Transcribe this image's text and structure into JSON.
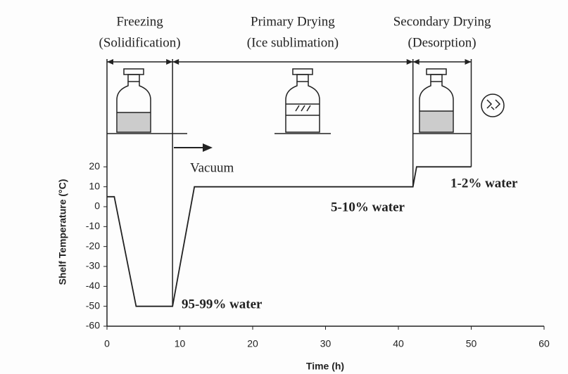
{
  "chart_data": {
    "type": "line",
    "xlabel": "Time (h)",
    "ylabel": "Shelf Temperature (°C)",
    "x": [
      0,
      1,
      4,
      9,
      12,
      42,
      42.5,
      50
    ],
    "series": [
      {
        "name": "Shelf temperature",
        "color": "#222222",
        "values": [
          5,
          5,
          -50,
          -50,
          10,
          10,
          20,
          20
        ]
      }
    ],
    "xlim": [
      0,
      60
    ],
    "xticks": [
      0,
      10,
      20,
      30,
      40,
      50,
      60
    ],
    "ylim": [
      -60,
      30
    ],
    "yticks": [
      -60,
      -50,
      -40,
      -30,
      -20,
      -10,
      0,
      10,
      20
    ],
    "phases": [
      {
        "name": "Freezing",
        "sub": "(Solidification)",
        "start": 0,
        "end": 9
      },
      {
        "name": "Primary Drying",
        "sub": "(Ice sublimation)",
        "start": 9,
        "end": 42
      },
      {
        "name": "Secondary Drying",
        "sub": "(Desorption)",
        "start": 42,
        "end": 50
      }
    ],
    "annotations": [
      "Vacuum",
      "95-99% water",
      "5-10% water",
      "1-2% water"
    ]
  }
}
